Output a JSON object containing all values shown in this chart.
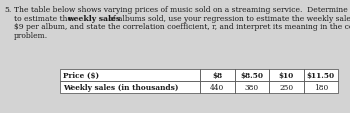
{
  "problem_number": "5.",
  "text_line1": "The table below shows varying prices of music sold on a streaming service.  Determine the linear regression",
  "text_line2a": "to estimate the ",
  "text_line2b": "weekly sales",
  "text_line2c": " of albums sold, use your regression to estimate the weekly sales if the price is",
  "text_line3": "$9 per album, and state the correlation coefficient, r, and interpret its meaning in the context of this",
  "text_line4": "problem.",
  "col_headers": [
    "Price ($)",
    "$8",
    "$8.50",
    "$10",
    "$11.50"
  ],
  "row2_label": "Weekly sales (in thousands)",
  "row2_values": [
    "440",
    "380",
    "250",
    "180"
  ],
  "font_size": 5.5,
  "text_color": "#1a1a1a",
  "bg_color": "#d3d3d3"
}
